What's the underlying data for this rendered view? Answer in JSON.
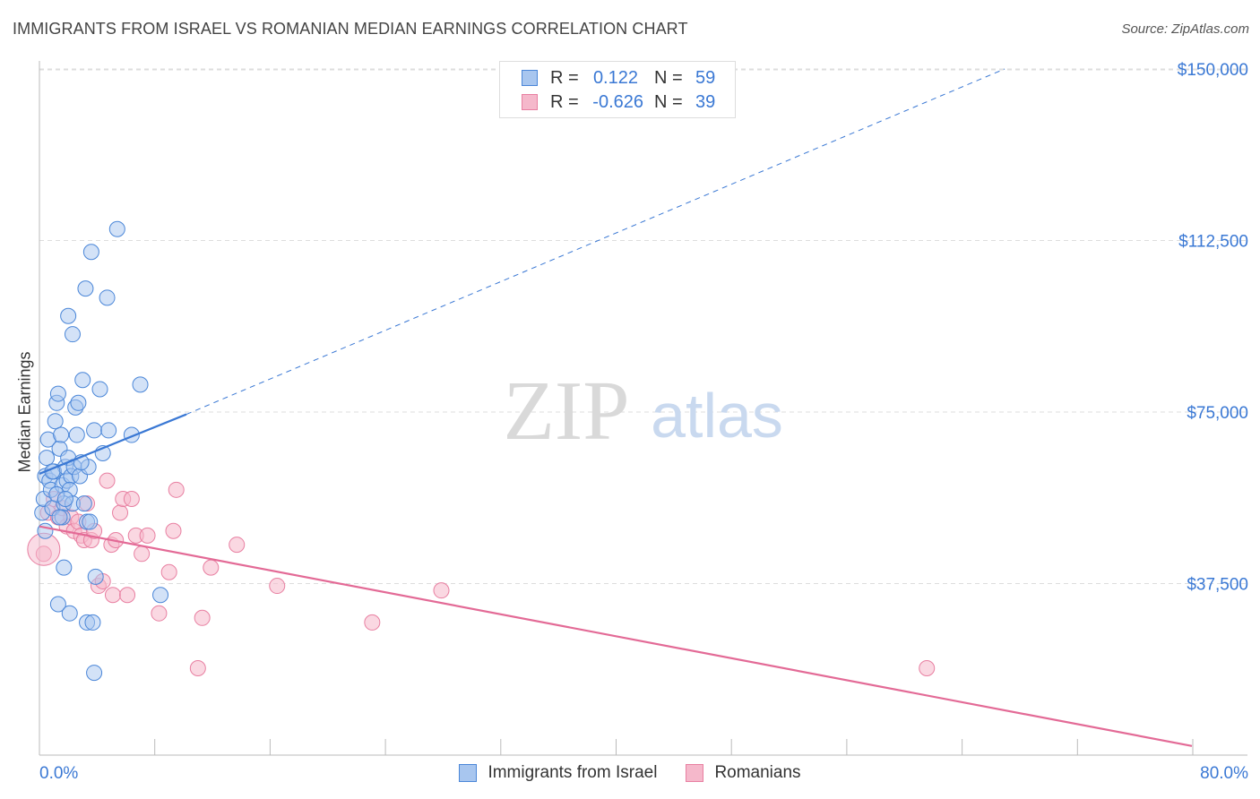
{
  "header": {
    "title": "IMMIGRANTS FROM ISRAEL VS ROMANIAN MEDIAN EARNINGS CORRELATION CHART",
    "source": "Source: ZipAtlas.com"
  },
  "watermark": {
    "zip": "ZIP",
    "atlas": "atlas"
  },
  "legend": {
    "rows": [
      {
        "r_label": "R =",
        "r_value": "0.122",
        "n_label": "N =",
        "n_value": "59"
      },
      {
        "r_label": "R =",
        "r_value": "-0.626",
        "n_label": "N =",
        "n_value": "39"
      }
    ]
  },
  "bottom_legend": {
    "israel": "Immigrants from Israel",
    "romanians": "Romanians"
  },
  "colors": {
    "israel_fill": "#a8c6ef",
    "israel_stroke": "#4a86d8",
    "israel_line": "#3a78d4",
    "romanian_fill": "#f5b8cb",
    "romanian_stroke": "#e87fa1",
    "romanian_line": "#e36a96",
    "value_text": "#3a78d4",
    "grid": "#dddddd"
  },
  "chart_data": {
    "type": "scatter",
    "title": "IMMIGRANTS FROM ISRAEL VS ROMANIAN MEDIAN EARNINGS CORRELATION CHART",
    "xlabel": "",
    "ylabel": "Median Earnings",
    "xlim": [
      0,
      80
    ],
    "ylim": [
      0,
      155000
    ],
    "x_tick_labels": [
      "0.0%",
      "80.0%"
    ],
    "y_ticks": [
      37500,
      75000,
      112500,
      150000
    ],
    "y_tick_labels": [
      "$37,500",
      "$75,000",
      "$112,500",
      "$150,000"
    ],
    "series": [
      {
        "name": "Immigrants from Israel",
        "R": 0.122,
        "N": 59,
        "trend": {
          "x": [
            0,
            10.2
          ],
          "y": [
            61500,
            74500
          ],
          "dashed_to": [
            67,
            150000
          ]
        },
        "points": [
          [
            0.2,
            53000
          ],
          [
            0.3,
            56000
          ],
          [
            0.4,
            61000
          ],
          [
            0.5,
            65000
          ],
          [
            0.6,
            69000
          ],
          [
            0.7,
            60000
          ],
          [
            0.8,
            58000
          ],
          [
            0.9,
            54000
          ],
          [
            1.0,
            62000
          ],
          [
            1.1,
            73000
          ],
          [
            1.2,
            77000
          ],
          [
            1.3,
            79000
          ],
          [
            1.4,
            67000
          ],
          [
            1.5,
            70000
          ],
          [
            1.6,
            59000
          ],
          [
            1.7,
            55000
          ],
          [
            1.8,
            63000
          ],
          [
            1.9,
            60000
          ],
          [
            2.0,
            65000
          ],
          [
            1.6,
            52000
          ],
          [
            1.7,
            41000
          ],
          [
            1.3,
            33000
          ],
          [
            1.4,
            52000
          ],
          [
            2.2,
            61000
          ],
          [
            2.4,
            63000
          ],
          [
            2.5,
            76000
          ],
          [
            2.7,
            77000
          ],
          [
            2.8,
            61000
          ],
          [
            2.1,
            58000
          ],
          [
            2.3,
            55000
          ],
          [
            2.6,
            70000
          ],
          [
            3.0,
            82000
          ],
          [
            3.3,
            51000
          ],
          [
            3.4,
            63000
          ],
          [
            3.2,
            102000
          ],
          [
            2.0,
            96000
          ],
          [
            2.1,
            31000
          ],
          [
            3.3,
            29000
          ],
          [
            3.7,
            29000
          ],
          [
            3.5,
            51000
          ],
          [
            3.8,
            71000
          ],
          [
            4.2,
            80000
          ],
          [
            4.4,
            66000
          ],
          [
            4.8,
            71000
          ],
          [
            3.9,
            39000
          ],
          [
            3.6,
            110000
          ],
          [
            3.8,
            18000
          ],
          [
            4.7,
            100000
          ],
          [
            5.4,
            115000
          ],
          [
            6.4,
            70000
          ],
          [
            7.0,
            81000
          ],
          [
            8.4,
            35000
          ],
          [
            2.3,
            92000
          ],
          [
            1.2,
            57000
          ],
          [
            1.8,
            56000
          ],
          [
            0.9,
            62000
          ],
          [
            2.9,
            64000
          ],
          [
            3.1,
            55000
          ],
          [
            0.4,
            49000
          ]
        ]
      },
      {
        "name": "Romanians",
        "R": -0.626,
        "N": 39,
        "trend": {
          "x": [
            0,
            80
          ],
          "y": [
            50000,
            2000
          ]
        },
        "points": [
          [
            0.3,
            44000
          ],
          [
            0.6,
            53000
          ],
          [
            1.0,
            56000
          ],
          [
            1.3,
            52000
          ],
          [
            1.6,
            54000
          ],
          [
            1.9,
            50000
          ],
          [
            2.2,
            52000
          ],
          [
            2.4,
            49000
          ],
          [
            2.7,
            51000
          ],
          [
            2.9,
            48000
          ],
          [
            3.1,
            47000
          ],
          [
            3.3,
            55000
          ],
          [
            3.6,
            47000
          ],
          [
            3.8,
            49000
          ],
          [
            4.1,
            37000
          ],
          [
            4.4,
            38000
          ],
          [
            4.7,
            60000
          ],
          [
            5.0,
            46000
          ],
          [
            5.1,
            35000
          ],
          [
            5.3,
            47000
          ],
          [
            5.6,
            53000
          ],
          [
            5.8,
            56000
          ],
          [
            6.1,
            35000
          ],
          [
            6.4,
            56000
          ],
          [
            6.7,
            48000
          ],
          [
            7.1,
            44000
          ],
          [
            7.5,
            48000
          ],
          [
            8.3,
            31000
          ],
          [
            9.0,
            40000
          ],
          [
            9.3,
            49000
          ],
          [
            9.5,
            58000
          ],
          [
            11.0,
            19000
          ],
          [
            11.3,
            30000
          ],
          [
            11.9,
            41000
          ],
          [
            13.7,
            46000
          ],
          [
            16.5,
            37000
          ],
          [
            23.1,
            29000
          ],
          [
            27.9,
            36000
          ],
          [
            61.6,
            19000
          ]
        ]
      }
    ]
  }
}
